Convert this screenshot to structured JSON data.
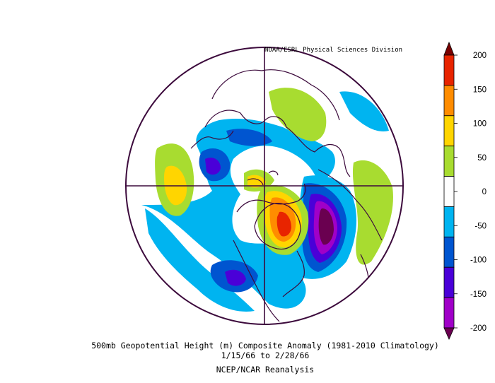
{
  "credit": "NOAA/ESRL Physical Sciences Division",
  "caption": {
    "line1": "500mb Geopotential Height (m) Composite Anomaly (1981-2010 Climatology)",
    "line2": "1/15/66  to 2/28/66",
    "line3": "NCEP/NCAR Reanalysis"
  },
  "colorbar": {
    "ticks": [
      "200",
      "150",
      "100",
      "50",
      "0",
      "-50",
      "-100",
      "-150",
      "-200"
    ],
    "colors": [
      "#7a0000",
      "#e82400",
      "#ff8c00",
      "#ffd500",
      "#a8dc30",
      "#ffffff",
      "#00b4f0",
      "#0055d0",
      "#4a00d8",
      "#a000c8",
      "#6a0050"
    ]
  },
  "chart_data": {
    "type": "heatmap",
    "projection": "north-polar-stereographic",
    "variable": "500mb Geopotential Height (m) Composite Anomaly",
    "levels": [
      -200,
      -150,
      -100,
      -50,
      0,
      50,
      100,
      150,
      200
    ]
  }
}
